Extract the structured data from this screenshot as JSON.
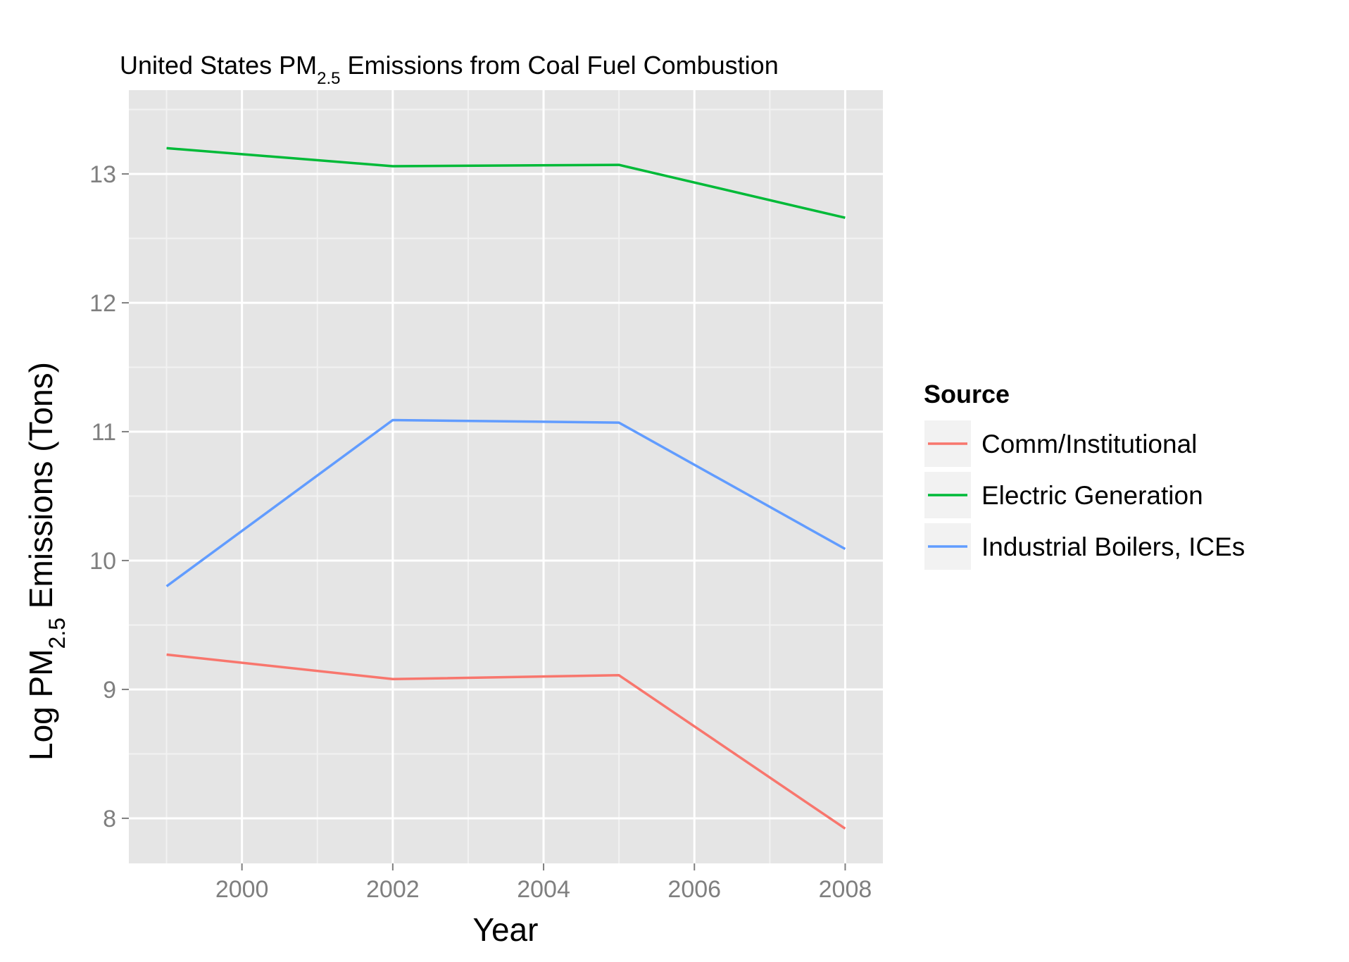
{
  "chart_data": {
    "type": "line",
    "title": {
      "main": "United States PM",
      "sub": "2.5",
      "rest": " Emissions from Coal Fuel Combustion"
    },
    "xlabel": "Year",
    "ylabel": {
      "main": "Log PM",
      "sub": "2.5",
      "rest": " Emissions (Tons)"
    },
    "x": [
      1999,
      2002,
      2005,
      2008
    ],
    "xlim": [
      1998.5,
      2008.5
    ],
    "ylim": [
      7.65,
      13.65
    ],
    "x_ticks": [
      2000,
      2002,
      2004,
      2006,
      2008
    ],
    "x_tick_labels": [
      "2000",
      "2002",
      "2004",
      "2006",
      "2008"
    ],
    "y_ticks": [
      8,
      9,
      10,
      11,
      12,
      13
    ],
    "y_tick_labels": [
      "8",
      "9",
      "10",
      "11",
      "12",
      "13"
    ],
    "grid": true,
    "legend_placement": "right",
    "legend_title": "Source",
    "series": [
      {
        "name": "Comm/Institutional",
        "color": "#F8766D",
        "values": [
          9.27,
          9.08,
          9.11,
          7.92
        ]
      },
      {
        "name": "Electric Generation",
        "color": "#00BA38",
        "values": [
          13.2,
          13.06,
          13.07,
          12.66
        ]
      },
      {
        "name": "Industrial Boilers, ICEs",
        "color": "#619CFF",
        "values": [
          9.8,
          11.09,
          11.07,
          10.09
        ]
      }
    ]
  }
}
